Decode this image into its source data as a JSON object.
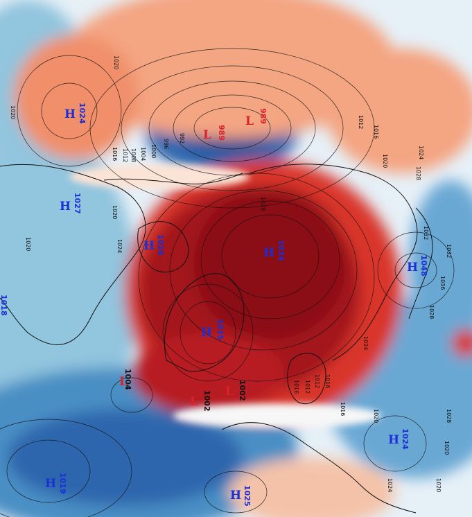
{
  "map": {
    "colors": {
      "deep_warm": "#8b0d14",
      "warm": "#d9342b",
      "light_warm": "#f4a582",
      "faint_warm": "#fbe3d6",
      "neutral": "#ffffff",
      "faint_cool": "#d1e5f0",
      "light_cool": "#92c5de",
      "cool": "#4393c3",
      "deep_cool": "#2c5a9e",
      "high_text": "#1a2fd6",
      "low_text": "#d8232a",
      "contour": "#111111"
    },
    "pressure_centers": [
      {
        "kind": "H",
        "value": "1024",
        "color": "high"
      },
      {
        "kind": "H",
        "value": "1027",
        "color": "high"
      },
      {
        "kind": "H",
        "value": "1026",
        "color": "high"
      },
      {
        "kind": "H",
        "value": "1034",
        "color": "high"
      },
      {
        "kind": "H",
        "value": "1035",
        "color": "high"
      },
      {
        "kind": "H",
        "value": "1048",
        "color": "high"
      },
      {
        "kind": "H",
        "value": "1024",
        "color": "high"
      },
      {
        "kind": "H",
        "value": "1019",
        "color": "high"
      },
      {
        "kind": "H",
        "value": "1025",
        "color": "high"
      },
      {
        "kind": "H",
        "value": "1018",
        "color": "high"
      },
      {
        "kind": "L",
        "value": "989",
        "color": "low"
      },
      {
        "kind": "L",
        "value": "989",
        "color": "low"
      },
      {
        "kind": "L",
        "value": "1004",
        "color": "low"
      },
      {
        "kind": "L",
        "value": "1002",
        "color": "low"
      },
      {
        "kind": "L",
        "value": "1002",
        "color": "low"
      }
    ],
    "isobar_labels": [
      "1020",
      "1020",
      "1016",
      "1012",
      "1008",
      "1004",
      "1000",
      "996",
      "992",
      "1028",
      "1020",
      "1012",
      "1016",
      "1020",
      "1024",
      "1028",
      "1032",
      "1036",
      "1016",
      "1012",
      "1016",
      "1020",
      "1024",
      "1028",
      "1012",
      "1016",
      "1020",
      "1024",
      "1028",
      "1032",
      "1020",
      "1024",
      "1020"
    ]
  }
}
